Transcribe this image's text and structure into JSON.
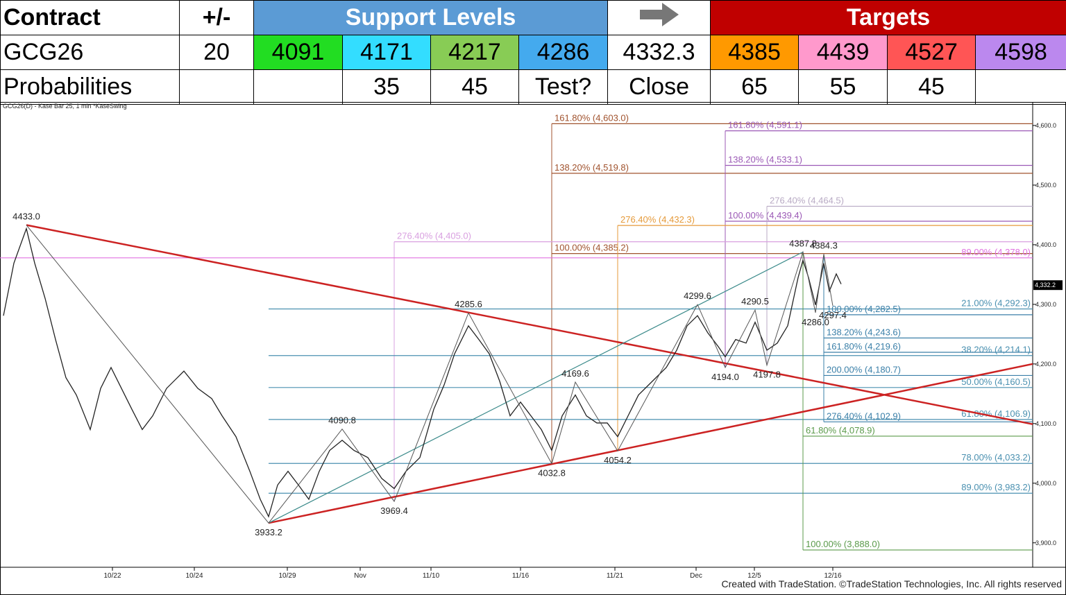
{
  "table": {
    "header": [
      "Contract",
      "+/-",
      "Support Levels",
      "Targets"
    ],
    "rows": [
      [
        "GCG26",
        "20",
        "4091",
        "4171",
        "4217",
        "4286",
        "4332.3",
        "4385",
        "4439",
        "4527",
        "4598"
      ],
      [
        "Probabilities",
        null,
        null,
        "35",
        "45",
        "Test?",
        "Close",
        "65",
        "55",
        "45",
        null
      ]
    ]
  },
  "chart_data": {
    "type": "line",
    "title": "GCG26(D) - Kase Bar 25, 1 min *KaseSwing",
    "footer": "Created with TradeStation. ©TradeStation Technologies, Inc. All rights reserved",
    "xlim": [
      0,
      1488
    ],
    "ylim": [
      3859,
      4636
    ],
    "xticks": [
      {
        "value": 162,
        "label": "10/22"
      },
      {
        "value": 280,
        "label": "10/24"
      },
      {
        "value": 414,
        "label": "10/29"
      },
      {
        "value": 519,
        "label": "Nov"
      },
      {
        "value": 621,
        "label": "11/10"
      },
      {
        "value": 750,
        "label": "11/16"
      },
      {
        "value": 886,
        "label": "11/21"
      },
      {
        "value": 1003,
        "label": "Dec"
      },
      {
        "value": 1087,
        "label": "12/5"
      },
      {
        "value": 1200,
        "label": "12/16"
      }
    ],
    "yticks": [
      {
        "value": 4600,
        "label": "4,600.0"
      },
      {
        "value": 4500,
        "label": "4,500.0"
      },
      {
        "value": 4400,
        "label": "4,400.0"
      },
      {
        "value": 4300,
        "label": "4,300.0"
      },
      {
        "value": 4200,
        "label": "4,200.0"
      },
      {
        "value": 4100,
        "label": "4,100.0"
      },
      {
        "value": 4000,
        "label": "4,000.0"
      },
      {
        "value": 3900,
        "label": "3,900.0"
      }
    ],
    "price": {
      "color": "#222222",
      "x": [
        5,
        20,
        38,
        50,
        65,
        80,
        95,
        110,
        130,
        145,
        160,
        175,
        190,
        205,
        220,
        240,
        265,
        285,
        305,
        320,
        340,
        360,
        375,
        387,
        400,
        415,
        430,
        445,
        460,
        475,
        493,
        510,
        530,
        550,
        568,
        585,
        605,
        625,
        640,
        655,
        675,
        690,
        705,
        720,
        735,
        750,
        765,
        780,
        795,
        810,
        829,
        845,
        860,
        875,
        890,
        905,
        920,
        940,
        960,
        975,
        990,
        1005,
        1020,
        1035,
        1045,
        1060,
        1075,
        1088,
        1105,
        1120,
        1135,
        1150,
        1157,
        1165,
        1175,
        1187,
        1195,
        1205,
        1212
      ],
      "values": [
        4281,
        4369,
        4427,
        4369,
        4310,
        4241,
        4177,
        4148,
        4090,
        4159,
        4194,
        4159,
        4124,
        4090,
        4113,
        4159,
        4188,
        4159,
        4142,
        4113,
        4078,
        4020,
        3973,
        3944,
        3997,
        4020,
        3997,
        3973,
        4020,
        4055,
        4072,
        4055,
        4043,
        4008,
        3991,
        4020,
        4043,
        4124,
        4165,
        4217,
        4264,
        4241,
        4217,
        4171,
        4113,
        4136,
        4113,
        4090,
        4055,
        4113,
        4148,
        4113,
        4101,
        4101,
        4078,
        4113,
        4148,
        4171,
        4194,
        4223,
        4264,
        4281,
        4252,
        4229,
        4212,
        4241,
        4235,
        4270,
        4223,
        4235,
        4264,
        4345,
        4374,
        4345,
        4299,
        4369,
        4322,
        4351,
        4334
      ]
    },
    "last_price": {
      "value": 4332.2,
      "label": "4,332.2"
    },
    "swing_color": "#555555",
    "pivots": [
      {
        "x": 38,
        "value": 4433,
        "label": "4433.0",
        "position": "above"
      },
      {
        "x": 387,
        "value": 3933.2,
        "label": "3933.2",
        "position": "below"
      },
      {
        "x": 493,
        "value": 4090.8,
        "label": "4090.8",
        "position": "above"
      },
      {
        "x": 568,
        "value": 3969.4,
        "label": "3969.4",
        "position": "below"
      },
      {
        "x": 675,
        "value": 4285.6,
        "label": "4285.6",
        "position": "above"
      },
      {
        "x": 795,
        "value": 4032.8,
        "label": "4032.8",
        "position": "below"
      },
      {
        "x": 829,
        "value": 4169.6,
        "label": "4169.6",
        "position": "above"
      },
      {
        "x": 890,
        "value": 4054.2,
        "label": "4054.2",
        "position": "below"
      },
      {
        "x": 1005,
        "value": 4299.6,
        "label": "4299.6",
        "position": "above"
      },
      {
        "x": 1045,
        "value": 4194,
        "label": "4194.0",
        "position": "below"
      },
      {
        "x": 1088,
        "value": 4290.5,
        "label": "4290.5",
        "position": "above"
      },
      {
        "x": 1105,
        "value": 4197.8,
        "label": "4197.8",
        "position": "below"
      },
      {
        "x": 1157,
        "value": 4387.8,
        "label": "4387.8",
        "position": "above"
      },
      {
        "x": 1175,
        "value": 4286,
        "label": "4286.0",
        "position": "below"
      },
      {
        "x": 1187,
        "value": 4384.3,
        "label": "4384.3",
        "position": "above"
      },
      {
        "x": 1200,
        "value": 4297.4,
        "label": "4297.4",
        "position": "below"
      }
    ],
    "trendlines": [
      {
        "color": "#cc2222",
        "x": [
          38,
          1488
        ],
        "y": [
          4433,
          4099
        ]
      },
      {
        "color": "#cc2222",
        "x": [
          387,
          1488
        ],
        "y": [
          3933.2,
          4200
        ]
      },
      {
        "color": "#3a8a8a",
        "x": [
          387,
          1157
        ],
        "y": [
          3933.2,
          4387.8
        ]
      }
    ],
    "fib_groups": [
      {
        "x": 795,
        "color": "#a0522d",
        "align": "left",
        "connector": true,
        "levels": [
          {
            "label": "161.80% (4,603.0)",
            "value": 4603
          },
          {
            "label": "138.20% (4,519.8)",
            "value": 4519.8
          },
          {
            "label": "100.00% (4,385.2)",
            "value": 4385.2
          }
        ]
      },
      {
        "x": 1045,
        "color": "#9b59b6",
        "align": "left",
        "connector": true,
        "levels": [
          {
            "label": "161.80% (4,591.1)",
            "value": 4591.1
          },
          {
            "label": "138.20% (4,533.1)",
            "value": 4533.1
          },
          {
            "label": "100.00% (4,439.4)",
            "value": 4439.4
          }
        ]
      },
      {
        "x": 1105,
        "color": "#b8aac4",
        "align": "left",
        "connector": true,
        "levels": [
          {
            "label": "276.40% (4,464.5)",
            "value": 4464.5
          }
        ]
      },
      {
        "x": 890,
        "color": "#e59a3a",
        "align": "left",
        "connector": true,
        "levels": [
          {
            "label": "276.40% (4,432.3)",
            "value": 4432.3
          }
        ]
      },
      {
        "x": 568,
        "color": "#d9a0e0",
        "align": "left",
        "connector": true,
        "levels": [
          {
            "label": "276.40% (4,405.0)",
            "value": 4405
          }
        ]
      },
      {
        "x": 0,
        "color": "#e070e0",
        "align": "right",
        "connector": false,
        "levels": [
          {
            "label": "89.00% (4,378.0)",
            "value": 4378
          }
        ]
      },
      {
        "x": 387,
        "color": "#4a90b0",
        "align": "right",
        "connector": false,
        "levels": [
          {
            "label": "21.00% (4,292.3)",
            "value": 4292.3
          },
          {
            "label": "38.20% (4,214.1)",
            "value": 4214.1
          },
          {
            "label": "50.00% (4,160.5)",
            "value": 4160.5
          },
          {
            "label": "61.80% (4,106.9)",
            "value": 4106.9
          },
          {
            "label": "78.00% (4,033.2)",
            "value": 4033.2
          },
          {
            "label": "89.00% (3,983.2)",
            "value": 3983.2
          }
        ]
      },
      {
        "x": 1187,
        "color": "#3a7fa8",
        "align": "left",
        "connector": true,
        "levels": [
          {
            "label": "100.00% (4,282.5)",
            "value": 4282.5
          },
          {
            "label": "138.20% (4,243.6)",
            "value": 4243.6
          },
          {
            "label": "161.80% (4,219.6)",
            "value": 4219.6
          },
          {
            "label": "200.00% (4,180.7)",
            "value": 4180.7
          },
          {
            "label": "276.40% (4,102.9)",
            "value": 4102.9
          }
        ]
      },
      {
        "x": 1157,
        "color": "#5a9a4a",
        "align": "left",
        "connector": true,
        "levels": [
          {
            "label": "61.80% (4,078.9)",
            "value": 4078.9
          },
          {
            "label": "100.00% (3,888.0)",
            "value": 3888
          }
        ]
      }
    ]
  }
}
